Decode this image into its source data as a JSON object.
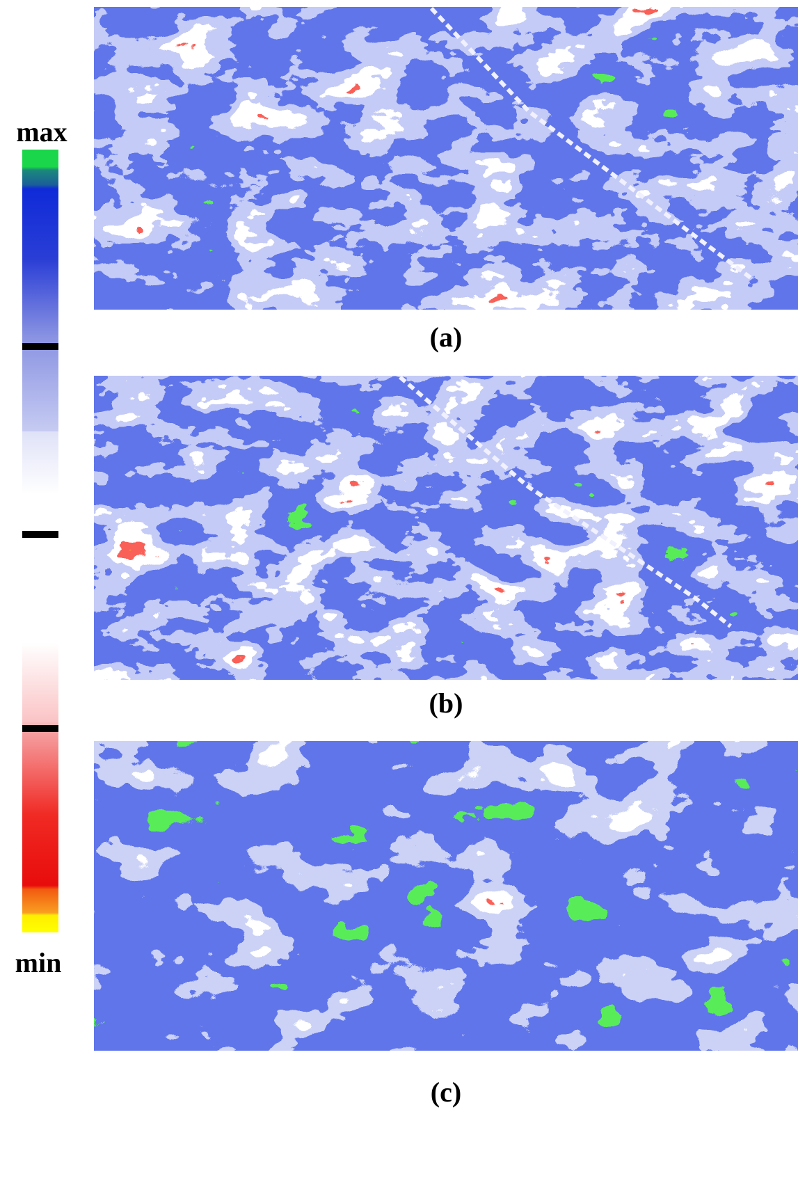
{
  "colorbar": {
    "max_label": "max",
    "min_label": "min"
  },
  "panels": [
    {
      "caption": "(a)"
    },
    {
      "caption": "(b)"
    },
    {
      "caption": "(c)"
    }
  ]
}
